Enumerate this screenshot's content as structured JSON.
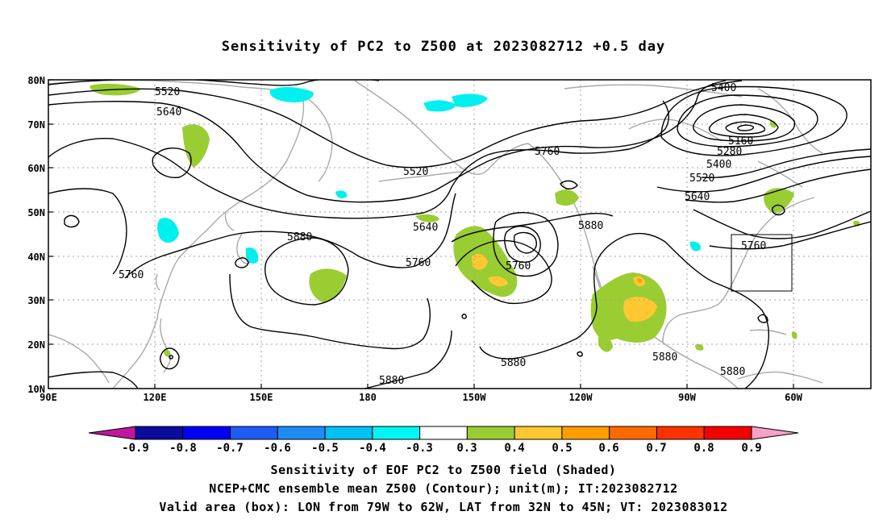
{
  "title": "Sensitivity of PC2 to Z500 at 2023082712 +0.5 day",
  "map": {
    "lat_labels": [
      "80N",
      "70N",
      "60N",
      "50N",
      "40N",
      "30N",
      "20N",
      "10N"
    ],
    "lon_labels": [
      "90E",
      "120E",
      "150E",
      "180",
      "150W",
      "120W",
      "90W",
      "60W"
    ],
    "extent": {
      "lon_min_east": 90,
      "lon_max_east": 322,
      "lat_min": 10,
      "lat_max": 80
    },
    "valid_box": {
      "lon_west": 79,
      "lon_east": 62,
      "lat_south": 32,
      "lat_north": 45
    },
    "contour_labels": [
      "5520",
      "5640",
      "5520",
      "5760",
      "5640",
      "5760",
      "5760",
      "5880",
      "5760",
      "5880",
      "5880",
      "5880",
      "5880",
      "5400",
      "5160",
      "5280",
      "5400",
      "5520",
      "5640",
      "5760",
      "5880"
    ]
  },
  "colorbar": {
    "labels": [
      "-0.9",
      "-0.8",
      "-0.7",
      "-0.6",
      "-0.5",
      "-0.4",
      "-0.3",
      "0.3",
      "0.4",
      "0.5",
      "0.6",
      "0.7",
      "0.8",
      "0.9"
    ],
    "low_arrow_color": "#c0179e",
    "high_arrow_color": "#f7a0c8",
    "colors": [
      "#0b0b9c",
      "#0000f5",
      "#1e5cf5",
      "#1e8cf5",
      "#00c0f5",
      "#00f5f5",
      "#ffffff",
      "#9acd32",
      "#ffc832",
      "#ff9e00",
      "#ff6a00",
      "#ff3200",
      "#f50000"
    ]
  },
  "caption": {
    "line1": "Sensitivity of EOF PC2 to Z500 field (Shaded)",
    "line2": "NCEP+CMC ensemble mean Z500 (Contour); unit(m); IT:2023082712",
    "line3": "Valid area (box): LON from 79W to 62W, LAT from 32N to 45N; VT: 2023083012"
  },
  "colors": {
    "coast": "#a9a9a9",
    "contour": "#000000",
    "grid": "#a0a0a0",
    "green_shade": "#9acd32",
    "cyan_shade": "#00f0f0",
    "yellow_shade": "#ffc832"
  }
}
